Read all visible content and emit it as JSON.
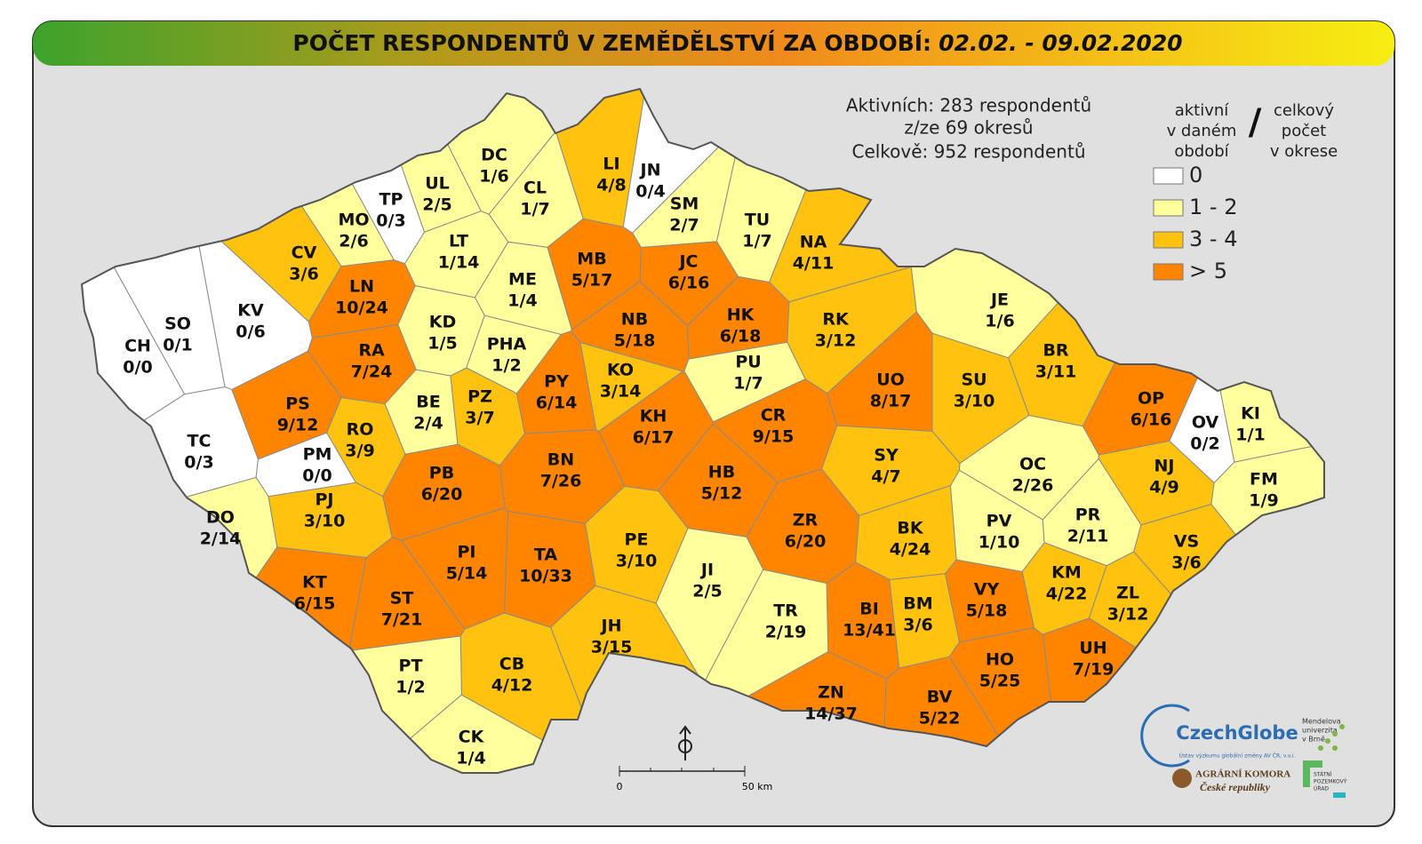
{
  "header": {
    "title": "POČET RESPONDENTŮ V ZEMĚDĚLSTVÍ ZA OBDOBÍ:",
    "period": "02.02. - 09.02.2020"
  },
  "summary": [
    "Aktivních: 283 respondentů",
    "z/ze 69 okresů",
    "Celkově: 952 respondentů"
  ],
  "legend": {
    "heading_left": [
      "aktivní",
      "v daném",
      "období"
    ],
    "separator": "/",
    "heading_right": [
      "celkový",
      "počet",
      "v okrese"
    ],
    "classes": [
      {
        "label": "0",
        "color": "#ffffff"
      },
      {
        "label": "1 - 2",
        "color": "#ffff9c"
      },
      {
        "label": "3 - 4",
        "color": "#ffc20e"
      },
      {
        "label": "> 5",
        "color": "#ff8500"
      }
    ]
  },
  "districts": [
    {
      "code": "CH",
      "label": "0/0",
      "active": 0,
      "total": 0
    },
    {
      "code": "SO",
      "label": "0/1",
      "active": 0,
      "total": 1
    },
    {
      "code": "KV",
      "label": "0/6",
      "active": 0,
      "total": 6
    },
    {
      "code": "TP",
      "label": "0/3",
      "active": 0,
      "total": 3
    },
    {
      "code": "MO",
      "label": "2/6",
      "active": 2,
      "total": 6
    },
    {
      "code": "UL",
      "label": "2/5",
      "active": 2,
      "total": 5
    },
    {
      "code": "DC",
      "label": "1/6",
      "active": 1,
      "total": 6
    },
    {
      "code": "CL",
      "label": "1/7",
      "active": 1,
      "total": 7
    },
    {
      "code": "LI",
      "label": "4/8",
      "active": 4,
      "total": 8
    },
    {
      "code": "JN",
      "label": "0/4",
      "active": 0,
      "total": 4
    },
    {
      "code": "SM",
      "label": "2/7",
      "active": 2,
      "total": 7
    },
    {
      "code": "TU",
      "label": "1/7",
      "active": 1,
      "total": 7
    },
    {
      "code": "NA",
      "label": "4/11",
      "active": 4,
      "total": 11
    },
    {
      "code": "CV",
      "label": "3/6",
      "active": 3,
      "total": 6
    },
    {
      "code": "LN",
      "label": "10/24",
      "active": 10,
      "total": 24
    },
    {
      "code": "LT",
      "label": "1/14",
      "active": 1,
      "total": 14
    },
    {
      "code": "ME",
      "label": "1/4",
      "active": 1,
      "total": 4
    },
    {
      "code": "MB",
      "label": "5/17",
      "active": 5,
      "total": 17
    },
    {
      "code": "JC",
      "label": "6/16",
      "active": 6,
      "total": 16
    },
    {
      "code": "HK",
      "label": "6/18",
      "active": 6,
      "total": 18
    },
    {
      "code": "RK",
      "label": "3/12",
      "active": 3,
      "total": 12
    },
    {
      "code": "JE",
      "label": "1/6",
      "active": 1,
      "total": 6
    },
    {
      "code": "BR",
      "label": "3/11",
      "active": 3,
      "total": 11
    },
    {
      "code": "KD",
      "label": "1/5",
      "active": 1,
      "total": 5
    },
    {
      "code": "PHA",
      "label": "1/2",
      "active": 1,
      "total": 2
    },
    {
      "code": "RA",
      "label": "7/24",
      "active": 7,
      "total": 24
    },
    {
      "code": "NB",
      "label": "5/18",
      "active": 5,
      "total": 18
    },
    {
      "code": "PU",
      "label": "1/7",
      "active": 1,
      "total": 7
    },
    {
      "code": "PS",
      "label": "9/12",
      "active": 9,
      "total": 12
    },
    {
      "code": "BE",
      "label": "2/4",
      "active": 2,
      "total": 4
    },
    {
      "code": "PZ",
      "label": "3/7",
      "active": 3,
      "total": 7
    },
    {
      "code": "PY",
      "label": "6/14",
      "active": 6,
      "total": 14
    },
    {
      "code": "KO",
      "label": "3/14",
      "active": 3,
      "total": 14
    },
    {
      "code": "KH",
      "label": "6/17",
      "active": 6,
      "total": 17
    },
    {
      "code": "CR",
      "label": "9/15",
      "active": 9,
      "total": 15
    },
    {
      "code": "UO",
      "label": "8/17",
      "active": 8,
      "total": 17
    },
    {
      "code": "SU",
      "label": "3/10",
      "active": 3,
      "total": 10
    },
    {
      "code": "OP",
      "label": "6/16",
      "active": 6,
      "total": 16
    },
    {
      "code": "KI",
      "label": "1/1",
      "active": 1,
      "total": 1
    },
    {
      "code": "OV",
      "label": "0/2",
      "active": 0,
      "total": 2
    },
    {
      "code": "TC",
      "label": "0/3",
      "active": 0,
      "total": 3
    },
    {
      "code": "PM",
      "label": "0/0",
      "active": 0,
      "total": 0
    },
    {
      "code": "RO",
      "label": "3/9",
      "active": 3,
      "total": 9
    },
    {
      "code": "PB",
      "label": "6/20",
      "active": 6,
      "total": 20
    },
    {
      "code": "BN",
      "label": "7/26",
      "active": 7,
      "total": 26
    },
    {
      "code": "HB",
      "label": "5/12",
      "active": 5,
      "total": 12
    },
    {
      "code": "SY",
      "label": "4/7",
      "active": 4,
      "total": 7
    },
    {
      "code": "OC",
      "label": "2/26",
      "active": 2,
      "total": 26
    },
    {
      "code": "NJ",
      "label": "4/9",
      "active": 4,
      "total": 9
    },
    {
      "code": "FM",
      "label": "1/9",
      "active": 1,
      "total": 9
    },
    {
      "code": "PJ",
      "label": "3/10",
      "active": 3,
      "total": 10
    },
    {
      "code": "DO",
      "label": "2/14",
      "active": 2,
      "total": 14
    },
    {
      "code": "ZR",
      "label": "6/20",
      "active": 6,
      "total": 20
    },
    {
      "code": "BK",
      "label": "4/24",
      "active": 4,
      "total": 24
    },
    {
      "code": "PV",
      "label": "1/10",
      "active": 1,
      "total": 10
    },
    {
      "code": "PR",
      "label": "2/11",
      "active": 2,
      "total": 11
    },
    {
      "code": "VS",
      "label": "3/6",
      "active": 3,
      "total": 6
    },
    {
      "code": "PE",
      "label": "3/10",
      "active": 3,
      "total": 10
    },
    {
      "code": "KT",
      "label": "6/15",
      "active": 6,
      "total": 15
    },
    {
      "code": "PI",
      "label": "5/14",
      "active": 5,
      "total": 14
    },
    {
      "code": "TA",
      "label": "10/33",
      "active": 10,
      "total": 33
    },
    {
      "code": "JI",
      "label": "2/5",
      "active": 2,
      "total": 5
    },
    {
      "code": "KM",
      "label": "4/22",
      "active": 4,
      "total": 22
    },
    {
      "code": "ZL",
      "label": "3/12",
      "active": 3,
      "total": 12
    },
    {
      "code": "ST",
      "label": "7/21",
      "active": 7,
      "total": 21
    },
    {
      "code": "BI",
      "label": "13/41",
      "active": 13,
      "total": 41
    },
    {
      "code": "BM",
      "label": "3/6",
      "active": 3,
      "total": 6
    },
    {
      "code": "VY",
      "label": "5/18",
      "active": 5,
      "total": 18
    },
    {
      "code": "TR",
      "label": "2/19",
      "active": 2,
      "total": 19
    },
    {
      "code": "JH",
      "label": "3/15",
      "active": 3,
      "total": 15
    },
    {
      "code": "UH",
      "label": "7/19",
      "active": 7,
      "total": 19
    },
    {
      "code": "HO",
      "label": "5/25",
      "active": 5,
      "total": 25
    },
    {
      "code": "CB",
      "label": "4/12",
      "active": 4,
      "total": 12
    },
    {
      "code": "PT",
      "label": "1/2",
      "active": 1,
      "total": 2
    },
    {
      "code": "ZN",
      "label": "14/37",
      "active": 14,
      "total": 37
    },
    {
      "code": "BV",
      "label": "5/22",
      "active": 5,
      "total": 22
    },
    {
      "code": "CK",
      "label": "1/4",
      "active": 1,
      "total": 4
    }
  ],
  "scale": {
    "start": "0",
    "end": "50 km"
  },
  "logos": {
    "czechglobe": "CzechGlobe",
    "czechglobe_sub": "Ústav výzkumu globální změny AV ČR, v.v.i.",
    "mendel": [
      "Mendelova",
      "univerzita",
      "v Brně"
    ],
    "agrarni": [
      "AGRÁRNÍ KOMORA",
      "České republiky"
    ],
    "spu": [
      "STÁTNÍ",
      "POZEMKOVÝ",
      "ÚŘAD"
    ]
  }
}
